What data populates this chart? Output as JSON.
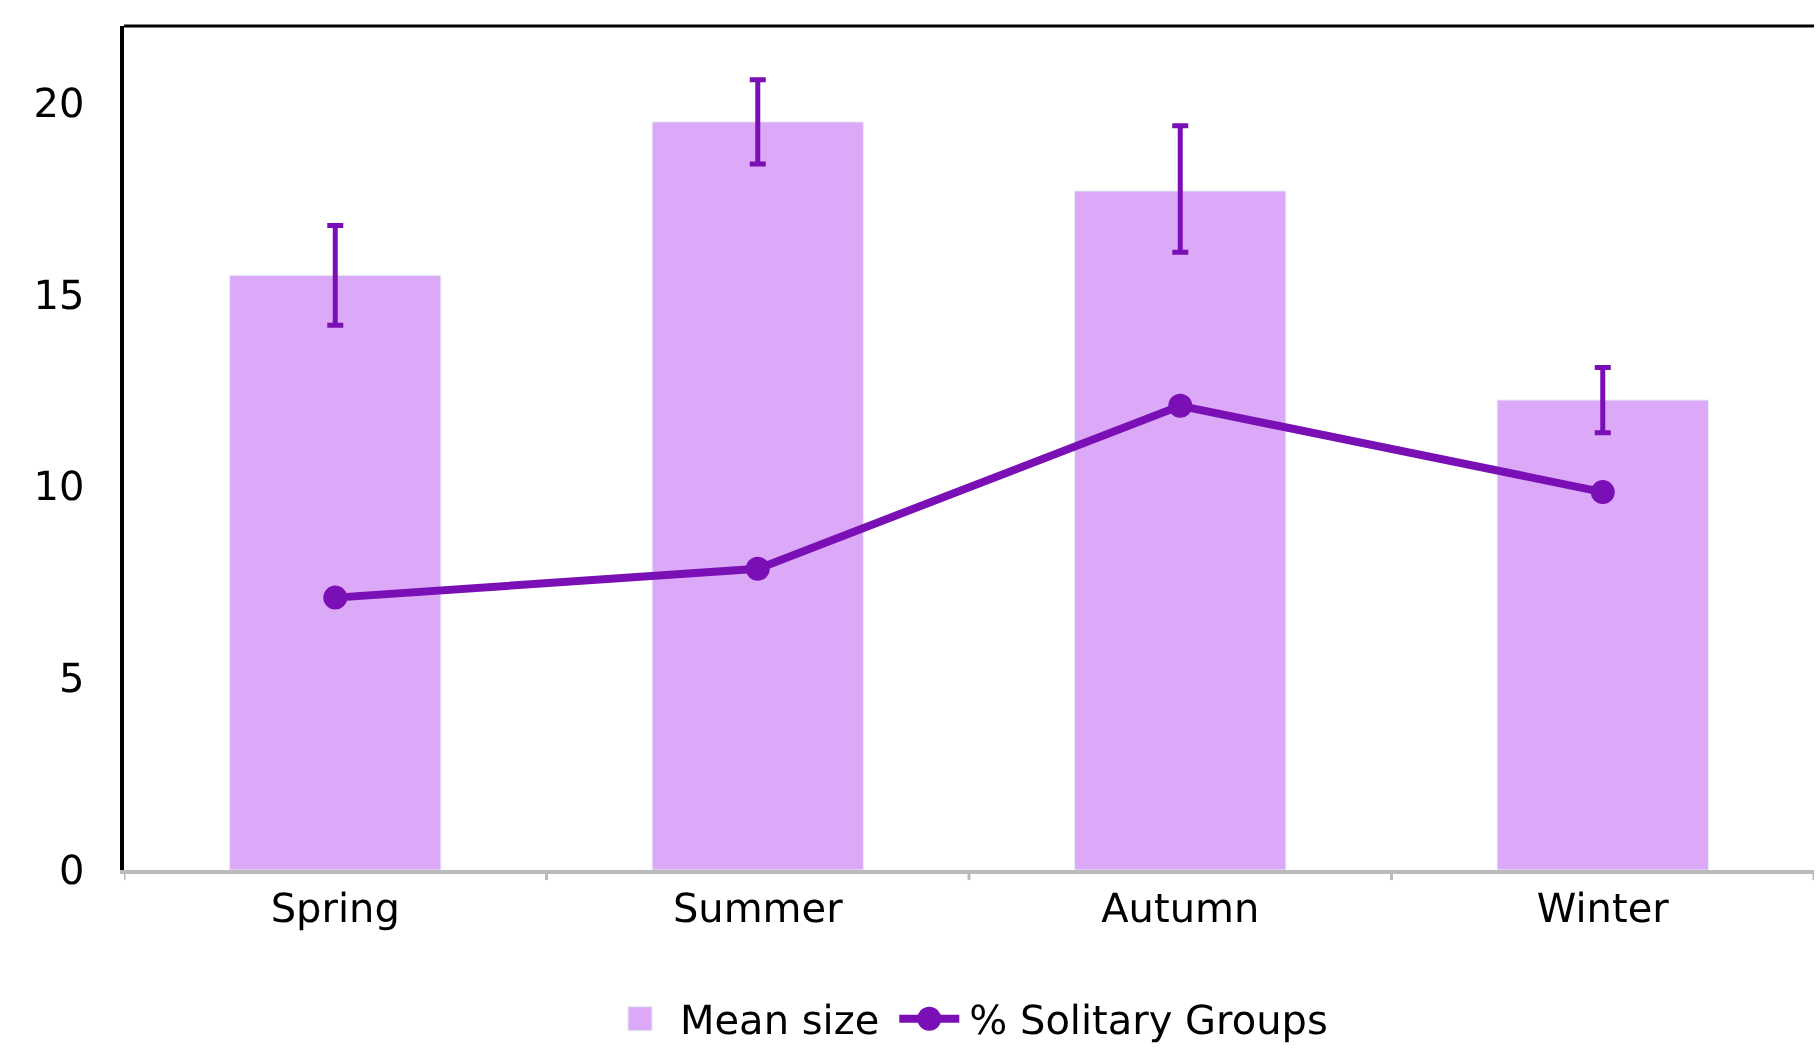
{
  "chart_data": {
    "type": "bar",
    "categories": [
      "Spring",
      "Summer",
      "Autumn",
      "Winter"
    ],
    "series": [
      {
        "name": "Mean size",
        "color": "#dba9f7",
        "values": [
          15.5,
          19.5,
          17.7,
          12.25
        ],
        "errors": [
          [
            14.2,
            16.8
          ],
          [
            18.4,
            20.6
          ],
          [
            16.1,
            19.4
          ],
          [
            11.4,
            13.1
          ]
        ]
      },
      {
        "name": "% Solitary Groups",
        "type": "line",
        "color": "#7a0fb5",
        "values": [
          7.1,
          7.85,
          12.1,
          9.85
        ],
        "marker": "circle",
        "line_style": "solid"
      }
    ],
    "ylim": [
      0,
      22
    ],
    "yticks": [
      0,
      5,
      10,
      15,
      20
    ],
    "legend": "bottom"
  }
}
